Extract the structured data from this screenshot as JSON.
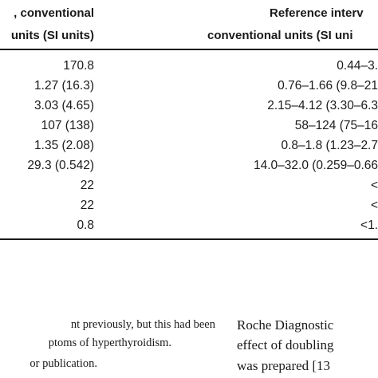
{
  "table": {
    "header": {
      "col_value_line1": ", conventional",
      "col_value_line2": "units (SI units)",
      "col_ref_line1": "Reference interv",
      "col_ref_line2": "conventional units (SI uni"
    },
    "rows": [
      {
        "value": "170.8",
        "reference": "0.44–3."
      },
      {
        "value": "1.27 (16.3)",
        "reference": "0.76–1.66 (9.8–21"
      },
      {
        "value": "3.03 (4.65)",
        "reference": "2.15–4.12 (3.30–6.3"
      },
      {
        "value": "107 (138)",
        "reference": "58–124 (75–16"
      },
      {
        "value": "1.35 (2.08)",
        "reference": "0.8–1.8 (1.23–2.7"
      },
      {
        "value": "29.3 (0.542)",
        "reference": "14.0–32.0 (0.259–0.66"
      },
      {
        "value": "22",
        "reference": "<"
      },
      {
        "value": "22",
        "reference": "<"
      },
      {
        "value": "0.8",
        "reference": "<1."
      }
    ]
  },
  "body": {
    "left_lines": [
      "nt previously, but this had been",
      "ptoms of hyperthyroidism.",
      "or publication."
    ],
    "right_lines": [
      "Roche Diagnostic",
      "effect of doubling",
      "was prepared [13"
    ]
  }
}
